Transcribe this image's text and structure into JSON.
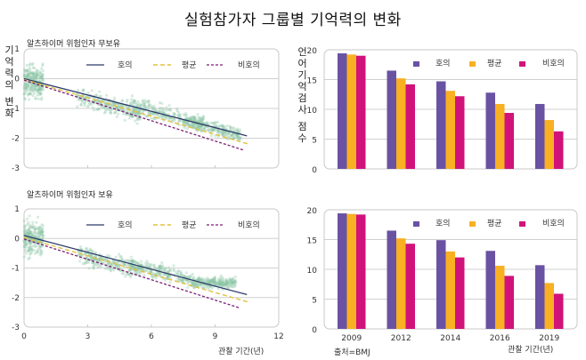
{
  "title": "실험참가자 그룹별 기억력의 변화",
  "source": "출처=BMJ",
  "colors": {
    "favorable": "#6a52a3",
    "average": "#f9b022",
    "unfavorable": "#d1127a",
    "line_favorable": "#2d3a6b",
    "line_average": "#e2c13d",
    "line_unfavorable": "#7a1f78",
    "scatter": "#8cc5a6"
  },
  "chart_data": [
    {
      "type": "scatter",
      "title": "알츠하이머 위험인자 무보유",
      "ylabel": "기억력의 변화",
      "xlabel": "",
      "xlim": [
        0,
        12
      ],
      "ylim": [
        -3,
        1
      ],
      "yticks": [
        "1",
        "0",
        "-1",
        "-2",
        "-3"
      ],
      "xticks": [],
      "grid": true,
      "legend": [
        "호의",
        "평균",
        "비호의"
      ],
      "legend_position": "top-right",
      "scatter_clusters": [
        {
          "x_range": [
            0,
            0.9
          ],
          "y_center": -0.1,
          "y_spread": 0.9
        },
        {
          "x_range": [
            2.5,
            5.5
          ],
          "y_center": -0.9,
          "y_spread": 0.5
        },
        {
          "x_range": [
            5,
            8.5
          ],
          "y_center": -1.2,
          "y_spread": 0.45
        },
        {
          "x_range": [
            7.5,
            10.2
          ],
          "y_center": -1.65,
          "y_spread": 0.4
        }
      ],
      "series": [
        {
          "name": "호의",
          "style": "solid",
          "x": [
            0,
            10.5
          ],
          "y": [
            0.0,
            -1.92
          ]
        },
        {
          "name": "평균",
          "style": "dashed",
          "x": [
            0,
            10.6
          ],
          "y": [
            -0.03,
            -2.2
          ]
        },
        {
          "name": "비호의",
          "style": "dotted",
          "x": [
            0,
            10.35
          ],
          "y": [
            -0.05,
            -2.4
          ]
        }
      ]
    },
    {
      "type": "scatter",
      "title": "알츠하이머 위험인자 보유",
      "ylabel": "",
      "xlabel": "관찰 기간(년)",
      "xlim": [
        0,
        12
      ],
      "ylim": [
        -3,
        1
      ],
      "yticks": [
        "1",
        "0",
        "-1",
        "-2",
        "-3"
      ],
      "xticks": [
        "0",
        "3",
        "6",
        "9",
        "12"
      ],
      "grid": true,
      "legend": [
        "호의",
        "평균",
        "비호의"
      ],
      "legend_position": "top-right",
      "scatter_clusters": [
        {
          "x_range": [
            0,
            0.9
          ],
          "y_center": 0.0,
          "y_spread": 0.9
        },
        {
          "x_range": [
            2.5,
            5.5
          ],
          "y_center": -0.8,
          "y_spread": 0.5
        },
        {
          "x_range": [
            5,
            8
          ],
          "y_center": -1.15,
          "y_spread": 0.4
        },
        {
          "x_range": [
            8,
            10
          ],
          "y_center": -1.5,
          "y_spread": 0.3
        }
      ],
      "series": [
        {
          "name": "호의",
          "style": "solid",
          "x": [
            0,
            10.5
          ],
          "y": [
            0.1,
            -1.9
          ]
        },
        {
          "name": "평균",
          "style": "dashed",
          "x": [
            0,
            10.55
          ],
          "y": [
            0.03,
            -2.15
          ]
        },
        {
          "name": "비호의",
          "style": "dotted",
          "x": [
            0,
            10.15
          ],
          "y": [
            -0.02,
            -2.35
          ]
        }
      ]
    },
    {
      "type": "bar",
      "title": "",
      "ylabel": "언어기억검사 점수",
      "xlabel": "",
      "ylim": [
        0,
        20
      ],
      "yticks": [
        "0",
        "5",
        "10",
        "15",
        "20"
      ],
      "categories": [
        "2009",
        "2012",
        "2014",
        "2016",
        "2019"
      ],
      "show_category_labels": false,
      "grid": true,
      "legend_position": "top-right",
      "series": [
        {
          "name": "호의",
          "values": [
            19.4,
            16.5,
            14.7,
            12.8,
            10.9
          ]
        },
        {
          "name": "평균",
          "values": [
            19.2,
            15.2,
            13.1,
            10.9,
            8.2
          ]
        },
        {
          "name": "비호의",
          "values": [
            19.0,
            14.2,
            12.2,
            9.4,
            6.3
          ]
        }
      ]
    },
    {
      "type": "bar",
      "title": "",
      "ylabel": "",
      "xlabel": "관찰 기간(년)",
      "ylim": [
        0,
        20
      ],
      "yticks": [
        "0",
        "5",
        "10",
        "15",
        "20"
      ],
      "categories": [
        "2009",
        "2012",
        "2014",
        "2016",
        "2019"
      ],
      "show_category_labels": true,
      "grid": true,
      "legend_position": "top-right",
      "series": [
        {
          "name": "호의",
          "values": [
            19.4,
            16.5,
            14.9,
            13.1,
            10.7
          ]
        },
        {
          "name": "평균",
          "values": [
            19.3,
            15.2,
            13.0,
            10.6,
            7.7
          ]
        },
        {
          "name": "비호의",
          "values": [
            19.2,
            14.3,
            12.0,
            8.9,
            5.9
          ]
        }
      ]
    }
  ]
}
